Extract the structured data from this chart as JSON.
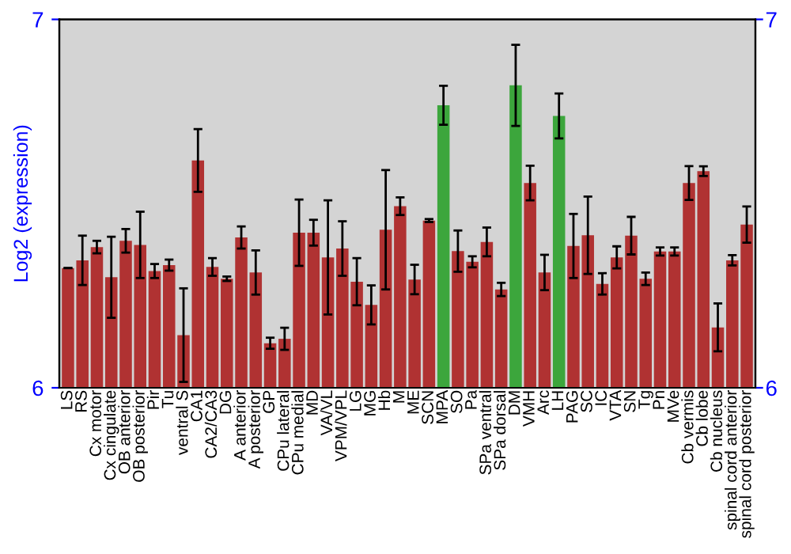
{
  "chart_data": {
    "type": "bar",
    "ylabel": "Log2 (expression)",
    "categories": [
      "LS",
      "RS",
      "Cx motor",
      "Cx cingulate",
      "OB anterior",
      "OB posterior",
      "Pir",
      "Tu",
      "ventral S",
      "CA1",
      "CA2/CA3",
      "DG",
      "A anterior",
      "A posterior",
      "GP",
      "CPu lateral",
      "CPu medial",
      "MD",
      "VA/VL",
      "VPM/VPL",
      "LG",
      "MG",
      "Hb",
      "M",
      "ME",
      "SCN",
      "MPA",
      "SO",
      "Pa",
      "SPa ventral",
      "SPa dorsal",
      "DM",
      "VMH",
      "Arc",
      "LH",
      "PAG",
      "SC",
      "IC",
      "VTA",
      "SN",
      "Tg",
      "Pn",
      "MVe",
      "Cb vermis",
      "Cb lobe",
      "Cb nucleus",
      "spinal cord anterior",
      "spinal cord posterior"
    ],
    "values": [
      6.325,
      6.346,
      6.382,
      6.3,
      6.399,
      6.388,
      6.317,
      6.333,
      6.143,
      6.617,
      6.328,
      6.296,
      6.408,
      6.313,
      6.121,
      6.133,
      6.421,
      6.421,
      6.354,
      6.378,
      6.288,
      6.225,
      6.429,
      6.493,
      6.294,
      6.454,
      6.767,
      6.371,
      6.342,
      6.396,
      6.267,
      6.821,
      6.556,
      6.313,
      6.738,
      6.385,
      6.414,
      6.282,
      6.354,
      6.413,
      6.296,
      6.37,
      6.37,
      6.556,
      6.588,
      6.164,
      6.346,
      6.443
    ],
    "errors": [
      null,
      0.067,
      0.017,
      0.11,
      0.032,
      0.09,
      0.019,
      0.015,
      0.127,
      0.085,
      0.024,
      0.006,
      0.03,
      0.06,
      0.015,
      0.03,
      0.09,
      0.035,
      0.155,
      0.074,
      0.064,
      0.053,
      0.162,
      0.024,
      0.04,
      0.004,
      0.053,
      0.056,
      0.015,
      0.039,
      0.018,
      0.11,
      0.047,
      0.048,
      0.061,
      0.087,
      0.105,
      0.029,
      0.03,
      0.051,
      0.017,
      0.011,
      0.011,
      0.046,
      0.013,
      0.065,
      0.014,
      0.049
    ],
    "colors": [
      "#b03232",
      "#b03232",
      "#b03232",
      "#b03232",
      "#b03232",
      "#b03232",
      "#b03232",
      "#b03232",
      "#b03232",
      "#b03232",
      "#b03232",
      "#b03232",
      "#b03232",
      "#b03232",
      "#b03232",
      "#b03232",
      "#b03232",
      "#b03232",
      "#b03232",
      "#b03232",
      "#b03232",
      "#b03232",
      "#b03232",
      "#b03232",
      "#b03232",
      "#b03232",
      "#3ca63c",
      "#b03232",
      "#b03232",
      "#b03232",
      "#b03232",
      "#3ca63c",
      "#b03232",
      "#b03232",
      "#3ca63c",
      "#b03232",
      "#b03232",
      "#b03232",
      "#b03232",
      "#b03232",
      "#b03232",
      "#b03232",
      "#b03232",
      "#b03232",
      "#b03232",
      "#b03232",
      "#b03232",
      "#b03232"
    ],
    "ylim": [
      6,
      7
    ],
    "yticks": [
      6,
      7
    ],
    "y2lim": [
      6,
      7
    ],
    "y2ticks": [
      6,
      7
    ],
    "grid": false,
    "legend": false
  }
}
